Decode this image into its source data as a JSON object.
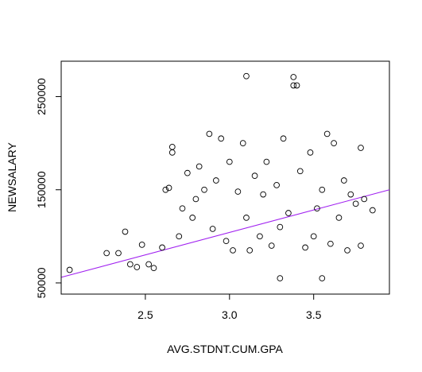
{
  "chart_data": {
    "type": "scatter",
    "title": "",
    "xlabel": "AVG.STDNT.CUM.GPA",
    "ylabel": "NEWSALARY",
    "xlim": [
      2.0,
      3.95
    ],
    "ylim": [
      38000,
      288000
    ],
    "xticks": [
      2.5,
      3.0,
      3.5
    ],
    "xtick_labels": [
      "2.5",
      "3.0",
      "3.5"
    ],
    "yticks": [
      50000,
      150000,
      250000
    ],
    "ytick_labels": [
      "50000",
      "150000",
      "250000"
    ],
    "grid": false,
    "legend": "none",
    "point_style": "open circle",
    "point_color": "#000000",
    "regression_line": {
      "color": "#a020f0",
      "points": [
        [
          2.0,
          56000
        ],
        [
          3.95,
          150000
        ]
      ]
    },
    "points": [
      [
        2.05,
        64000
      ],
      [
        2.27,
        82000
      ],
      [
        2.34,
        82000
      ],
      [
        2.38,
        105000
      ],
      [
        2.41,
        70000
      ],
      [
        2.45,
        67000
      ],
      [
        2.48,
        91000
      ],
      [
        2.52,
        70000
      ],
      [
        2.55,
        66000
      ],
      [
        2.6,
        88000
      ],
      [
        2.62,
        150000
      ],
      [
        2.64,
        152000
      ],
      [
        2.66,
        190000
      ],
      [
        2.66,
        196000
      ],
      [
        2.7,
        100000
      ],
      [
        2.72,
        130000
      ],
      [
        2.75,
        168000
      ],
      [
        2.78,
        120000
      ],
      [
        2.8,
        140000
      ],
      [
        2.82,
        175000
      ],
      [
        2.85,
        150000
      ],
      [
        2.88,
        210000
      ],
      [
        2.9,
        108000
      ],
      [
        2.92,
        160000
      ],
      [
        2.95,
        205000
      ],
      [
        2.98,
        95000
      ],
      [
        3.0,
        180000
      ],
      [
        3.02,
        85000
      ],
      [
        3.05,
        148000
      ],
      [
        3.08,
        200000
      ],
      [
        3.1,
        120000
      ],
      [
        3.1,
        272000
      ],
      [
        3.12,
        85000
      ],
      [
        3.15,
        165000
      ],
      [
        3.18,
        100000
      ],
      [
        3.2,
        145000
      ],
      [
        3.22,
        180000
      ],
      [
        3.25,
        90000
      ],
      [
        3.28,
        155000
      ],
      [
        3.3,
        110000
      ],
      [
        3.32,
        205000
      ],
      [
        3.35,
        125000
      ],
      [
        3.38,
        262000
      ],
      [
        3.38,
        271000
      ],
      [
        3.4,
        262000
      ],
      [
        3.42,
        170000
      ],
      [
        3.45,
        88000
      ],
      [
        3.48,
        190000
      ],
      [
        3.5,
        100000
      ],
      [
        3.52,
        130000
      ],
      [
        3.55,
        150000
      ],
      [
        3.58,
        210000
      ],
      [
        3.6,
        92000
      ],
      [
        3.62,
        200000
      ],
      [
        3.65,
        120000
      ],
      [
        3.68,
        160000
      ],
      [
        3.7,
        85000
      ],
      [
        3.72,
        145000
      ],
      [
        3.75,
        135000
      ],
      [
        3.78,
        195000
      ],
      [
        3.8,
        140000
      ],
      [
        3.85,
        128000
      ],
      [
        3.78,
        90000
      ],
      [
        3.55,
        55000
      ],
      [
        3.3,
        55000
      ]
    ]
  }
}
